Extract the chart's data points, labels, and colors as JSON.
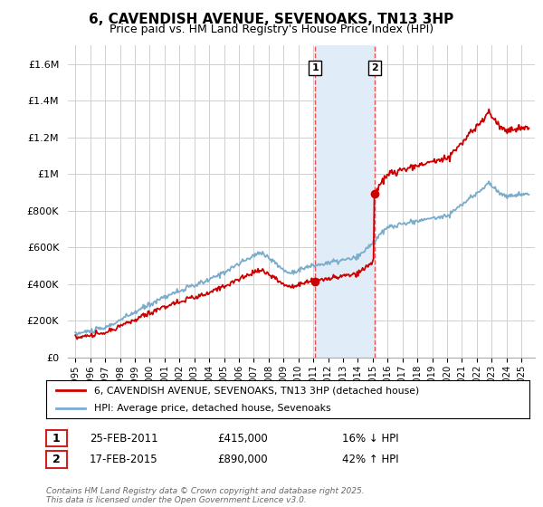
{
  "title": "6, CAVENDISH AVENUE, SEVENOAKS, TN13 3HP",
  "subtitle": "Price paid vs. HM Land Registry's House Price Index (HPI)",
  "ylim": [
    0,
    1700000
  ],
  "yticks": [
    0,
    200000,
    400000,
    600000,
    800000,
    1000000,
    1200000,
    1400000,
    1600000
  ],
  "ytick_labels": [
    "£0",
    "£200K",
    "£400K",
    "£600K",
    "£800K",
    "£1M",
    "£1.2M",
    "£1.4M",
    "£1.6M"
  ],
  "background_color": "#ffffff",
  "grid_color": "#d0d0d0",
  "t1": 2011.13,
  "t2": 2015.12,
  "price_t1": 415000,
  "price_t2": 890000,
  "shade_color": "#e0ecf8",
  "vline_color": "#ee3333",
  "red_line_color": "#cc0000",
  "blue_line_color": "#7aaccc",
  "legend1": "6, CAVENDISH AVENUE, SEVENOAKS, TN13 3HP (detached house)",
  "legend2": "HPI: Average price, detached house, Sevenoaks",
  "tx1_date": "25-FEB-2011",
  "tx1_price": "£415,000",
  "tx1_hpi": "16% ↓ HPI",
  "tx2_date": "17-FEB-2015",
  "tx2_price": "£890,000",
  "tx2_hpi": "42% ↑ HPI",
  "footer": "Contains HM Land Registry data © Crown copyright and database right 2025.\nThis data is licensed under the Open Government Licence v3.0.",
  "xlim_left": 1994.5,
  "xlim_right": 2025.9
}
